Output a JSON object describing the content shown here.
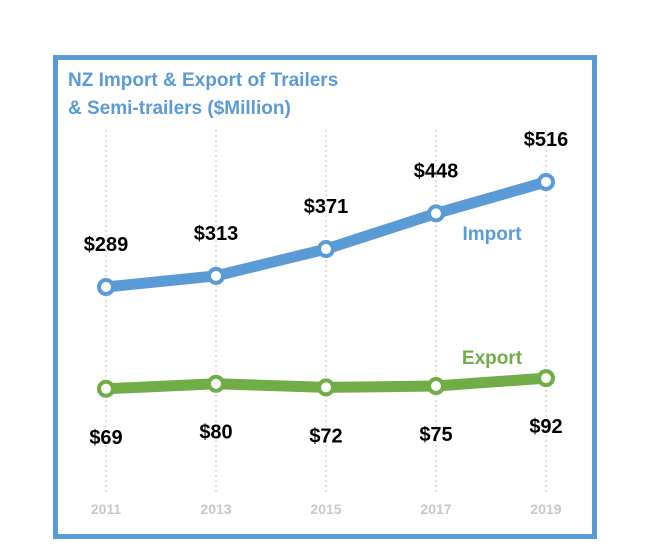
{
  "chart_data": {
    "type": "line",
    "title": [
      "NZ Import & Export of Trailers",
      "& Semi-trailers ($Million)"
    ],
    "x": [
      "2011",
      "2013",
      "2015",
      "2017",
      "2019"
    ],
    "series": [
      {
        "name": "Import",
        "color": "#5b9bd5",
        "values": [
          289,
          313,
          371,
          448,
          516
        ],
        "labels": [
          "$289",
          "$313",
          "$371",
          "$448",
          "$516"
        ]
      },
      {
        "name": "Export",
        "color": "#70ad47",
        "values": [
          69,
          80,
          72,
          75,
          92
        ],
        "labels": [
          "$69",
          "$80",
          "$72",
          "$75",
          "$92"
        ]
      }
    ],
    "xlabel": "",
    "ylabel": "",
    "grid": "vertical dotted",
    "legend": "inline series labels"
  }
}
